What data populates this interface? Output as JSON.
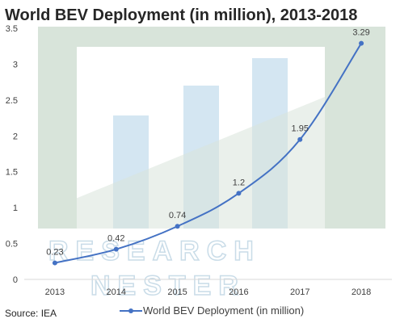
{
  "chart_data": {
    "type": "line",
    "title": "World BEV Deployment (in million), 2013-2018",
    "categories": [
      "2013",
      "2014",
      "2015",
      "2016",
      "2017",
      "2018"
    ],
    "series": [
      {
        "name": "World BEV Deployment (in million)",
        "values": [
          0.23,
          0.42,
          0.74,
          1.2,
          1.95,
          3.29
        ]
      }
    ],
    "data_labels": [
      "0.23",
      "0.42",
      "0.74",
      "1.2",
      "1.95",
      "3.29"
    ],
    "y_ticks": [
      "0",
      "0.5",
      "1",
      "1.5",
      "2",
      "2.5",
      "3",
      "3.5"
    ],
    "ylim": [
      0,
      3.5
    ],
    "grid": false,
    "legend_position": "bottom",
    "line_color": "#4472c4",
    "source": "Source: IEA"
  },
  "watermark": {
    "line1": "RESEARCH",
    "line2": "NESTER"
  }
}
